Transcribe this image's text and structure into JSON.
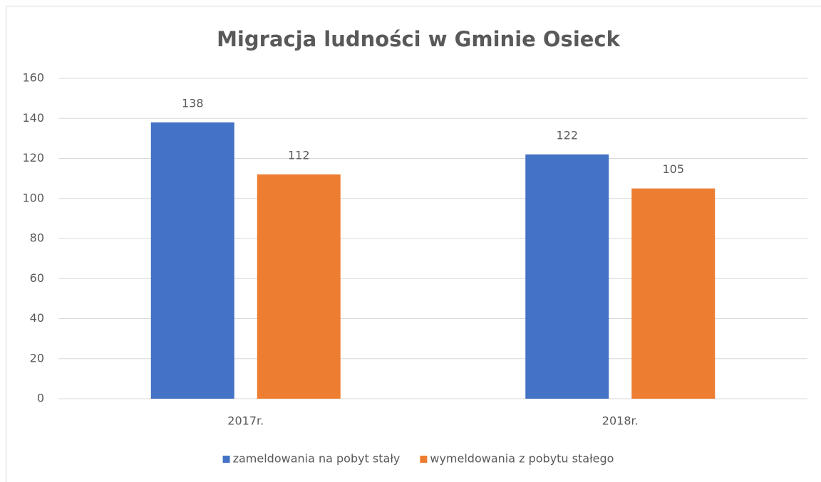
{
  "chart_data": {
    "type": "bar",
    "title": "Migracja ludności w Gminie Osieck",
    "categories": [
      "2017r.",
      "2018r."
    ],
    "series": [
      {
        "name": "zameldowania na pobyt stały",
        "color": "#4472c4",
        "values": [
          138,
          122
        ]
      },
      {
        "name": "wymeldowania z pobytu stałego",
        "color": "#ed7d31",
        "values": [
          112,
          105
        ]
      }
    ],
    "ylim": [
      0,
      160
    ],
    "yticks": [
      0,
      20,
      40,
      60,
      80,
      100,
      120,
      140,
      160
    ],
    "grid": true,
    "legend": "bottom"
  }
}
